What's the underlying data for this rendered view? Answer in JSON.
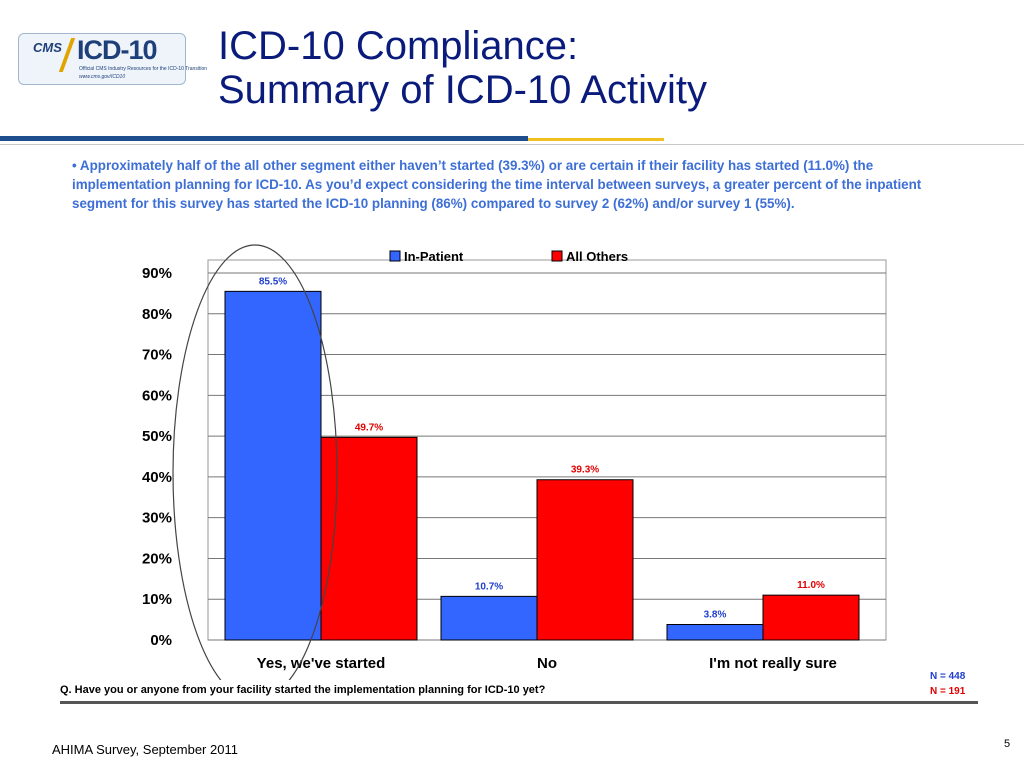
{
  "logo": {
    "cms": "CMS",
    "icd": "ICD-10",
    "subtitle": "Official CMS Industry Resources for the ICD-10 Transition",
    "url": "www.cms.gov/ICD10"
  },
  "slide": {
    "title_line1": "ICD-10 Compliance:",
    "title_line2": "Summary of ICD-10 Activity",
    "bullet": "• Approximately half of the all other segment either haven’t started (39.3%) or are certain if their facility has started (11.0%) the implementation planning for ICD-10.  As you’d expect considering the time interval between surveys, a greater percent of the inpatient segment for this survey has started the ICD-10 planning (86%) compared to survey 2 (62%) and/or survey 1 (55%).",
    "question": "Q. Have you or anyone from your facility started the implementation planning for ICD-10 yet?",
    "n_inpatient": "N = 448",
    "n_others": "N = 191",
    "footer": "AHIMA Survey, September 2011",
    "page_number": "5"
  },
  "chart_data": {
    "type": "bar",
    "categories": [
      "Yes, we've started",
      "No",
      "I'm not really sure"
    ],
    "series": [
      {
        "name": "In-Patient",
        "values": [
          85.5,
          10.7,
          3.8
        ],
        "labels": [
          "85.5%",
          "10.7%",
          "3.8%"
        ],
        "color": "#3366ff"
      },
      {
        "name": "All Others",
        "values": [
          49.7,
          39.3,
          11.0
        ],
        "labels": [
          "49.7%",
          "39.3%",
          "11.0%"
        ],
        "color": "#ff0000"
      }
    ],
    "yticks": [
      "0%",
      "10%",
      "20%",
      "30%",
      "40%",
      "50%",
      "60%",
      "70%",
      "80%",
      "90%"
    ],
    "ylim": [
      0,
      90
    ],
    "grid": true,
    "legend": "top-center"
  }
}
